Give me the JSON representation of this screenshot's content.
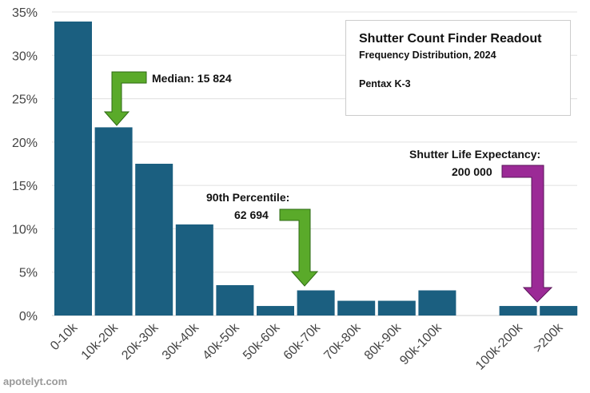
{
  "chart_data": {
    "type": "bar",
    "title": "Shutter Count Finder Readout",
    "subtitle": "Frequency Distribution, 2024",
    "camera": "Pentax K-3",
    "categories": [
      "0-10k",
      "10k-20k",
      "20k-30k",
      "30k-40k",
      "40k-50k",
      "50k-60k",
      "60k-70k",
      "70k-80k",
      "80k-90k",
      "90k-100k",
      "100k-200k",
      ">200k"
    ],
    "values": [
      33.9,
      21.7,
      17.5,
      10.5,
      3.5,
      1.1,
      2.9,
      1.7,
      1.7,
      2.9,
      1.1,
      1.1
    ],
    "ylim": [
      0,
      35
    ],
    "yticks": [
      "0%",
      "5%",
      "10%",
      "15%",
      "20%",
      "25%",
      "30%",
      "35%"
    ],
    "grid": true,
    "bar_color": "#1b5f80",
    "annotations": {
      "median": "Median: 15 824",
      "p90_line1": "90th Percentile:",
      "p90_line2": "62 694",
      "life_line1": "Shutter Life Expectancy:",
      "life_line2": "200 000",
      "green": "#5aaa2a",
      "purple": "#9b2a96"
    }
  },
  "watermark": "apotelyt.com"
}
